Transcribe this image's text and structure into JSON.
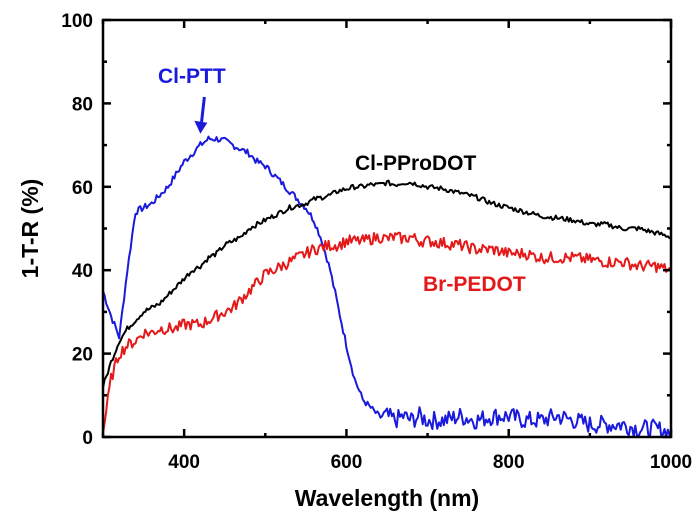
{
  "chart_data": {
    "type": "line",
    "title": "",
    "xlabel": "Wavelength (nm)",
    "ylabel": "1-T-R (%)",
    "xlim": [
      300,
      1000
    ],
    "ylim": [
      0,
      100
    ],
    "xticks": [
      400,
      600,
      800,
      1000
    ],
    "xticks_minor": [
      300,
      500,
      700,
      900
    ],
    "yticks": [
      0,
      20,
      40,
      60,
      80,
      100
    ],
    "yticks_minor": [
      10,
      30,
      50,
      70,
      90
    ],
    "xtick_labels": [
      "400",
      "600",
      "800",
      "1000"
    ],
    "ytick_labels": [
      "0",
      "20",
      "40",
      "60",
      "80",
      "100"
    ],
    "grid": false,
    "legend": "none (inline curve labels)",
    "annotations": [
      {
        "text": "Cl-PTT",
        "color": "#1a1adc",
        "series": "Cl-PTT",
        "arrow_to": [
          420,
          72
        ]
      },
      {
        "text": "Cl-PProDOT",
        "color": "#000000",
        "series": "Cl-PProDOT"
      },
      {
        "text": "Br-PEDOT",
        "color": "#e41a1a",
        "series": "Br-PEDOT"
      }
    ],
    "x": [
      300,
      310,
      320,
      330,
      340,
      350,
      360,
      370,
      380,
      390,
      400,
      410,
      420,
      430,
      440,
      450,
      460,
      470,
      480,
      490,
      500,
      510,
      520,
      530,
      540,
      550,
      560,
      570,
      580,
      590,
      600,
      610,
      620,
      630,
      640,
      650,
      660,
      670,
      680,
      690,
      700,
      720,
      740,
      760,
      780,
      800,
      820,
      840,
      860,
      880,
      900,
      920,
      940,
      960,
      980,
      1000
    ],
    "series": [
      {
        "name": "Cl-PTT",
        "color": "#1a1adc",
        "values": [
          35,
          29,
          24,
          40,
          54,
          55,
          56,
          58,
          60,
          63,
          66,
          68,
          70,
          71.5,
          71.5,
          71,
          70,
          69,
          68,
          66,
          65,
          63,
          61,
          59,
          57,
          55,
          52,
          47,
          40,
          31,
          22,
          14,
          9,
          7,
          5,
          5,
          4,
          5,
          4,
          5,
          4,
          4,
          5,
          4,
          5,
          5,
          4,
          4,
          5,
          4,
          3,
          3,
          3,
          2,
          2,
          1
        ]
      },
      {
        "name": "Cl-PProDOT",
        "color": "#000000",
        "values": [
          12,
          18,
          23,
          26,
          28,
          30,
          31,
          32,
          34,
          36,
          38,
          40,
          41,
          43,
          44,
          46,
          47,
          48,
          50,
          51,
          52,
          53,
          54,
          55,
          55.5,
          56,
          57,
          57.5,
          58,
          59,
          59.5,
          60,
          60,
          60.5,
          60.5,
          61,
          60.5,
          61,
          61,
          60.5,
          60,
          59.5,
          58.5,
          57.5,
          56,
          55,
          54,
          53,
          52.5,
          52,
          51,
          51,
          50,
          50,
          49,
          48
        ]
      },
      {
        "name": "Br-PEDOT",
        "color": "#e41a1a",
        "values": [
          1,
          14,
          20,
          22,
          23,
          25,
          25,
          26,
          26,
          26,
          27,
          27,
          27,
          28,
          29,
          30,
          31,
          33,
          35,
          37,
          39,
          40,
          41,
          42,
          43,
          44,
          45,
          45.5,
          46,
          46,
          47,
          47,
          47,
          47.5,
          48,
          47.5,
          48,
          47.5,
          48,
          47,
          47,
          46.5,
          46,
          45,
          45,
          44,
          44,
          43,
          43,
          43,
          42.5,
          42,
          42,
          41,
          41,
          40
        ]
      }
    ]
  }
}
